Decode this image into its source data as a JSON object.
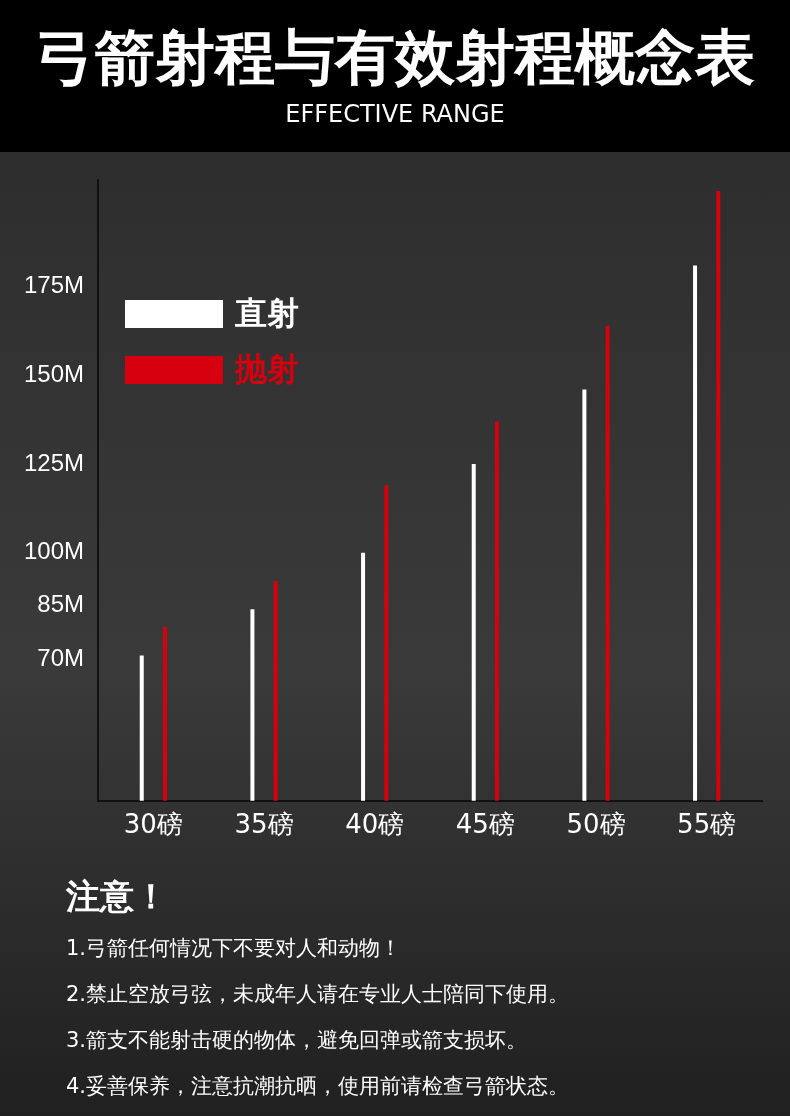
{
  "chart_data": {
    "type": "bar",
    "title": "弓箭射程与有效射程概念表",
    "subtitle": "EFFECTIVE RANGE",
    "categories": [
      "30磅",
      "35磅",
      "40磅",
      "45磅",
      "50磅",
      "55磅"
    ],
    "series": [
      {
        "name": "直射",
        "color": "#ffffff",
        "values": [
          71,
          84,
          100,
          125,
          146,
          181
        ]
      },
      {
        "name": "抛射",
        "color": "#d7000f",
        "values": [
          79,
          92,
          119,
          137,
          164,
          202
        ]
      }
    ],
    "ylim": [
      30,
      205
    ],
    "yticks": [
      {
        "value": 70,
        "label": "70M"
      },
      {
        "value": 85,
        "label": "85M"
      },
      {
        "value": 100,
        "label": "100M"
      },
      {
        "value": 125,
        "label": "125M"
      },
      {
        "value": 150,
        "label": "150M"
      },
      {
        "value": 175,
        "label": "175M"
      }
    ],
    "grid": false,
    "legend": "top left",
    "annotations": [
      "注意！",
      "1.弓箭任何情况下不要对人和动物！",
      "2.禁止空放弓弦，未成年人请在专业人士陪同下使用。",
      "3.箭支不能射击硬的物体，避免回弹或箭支损坏。",
      "4.妥善保养，注意抗潮抗晒，使用前请检查弓箭状态。"
    ]
  }
}
